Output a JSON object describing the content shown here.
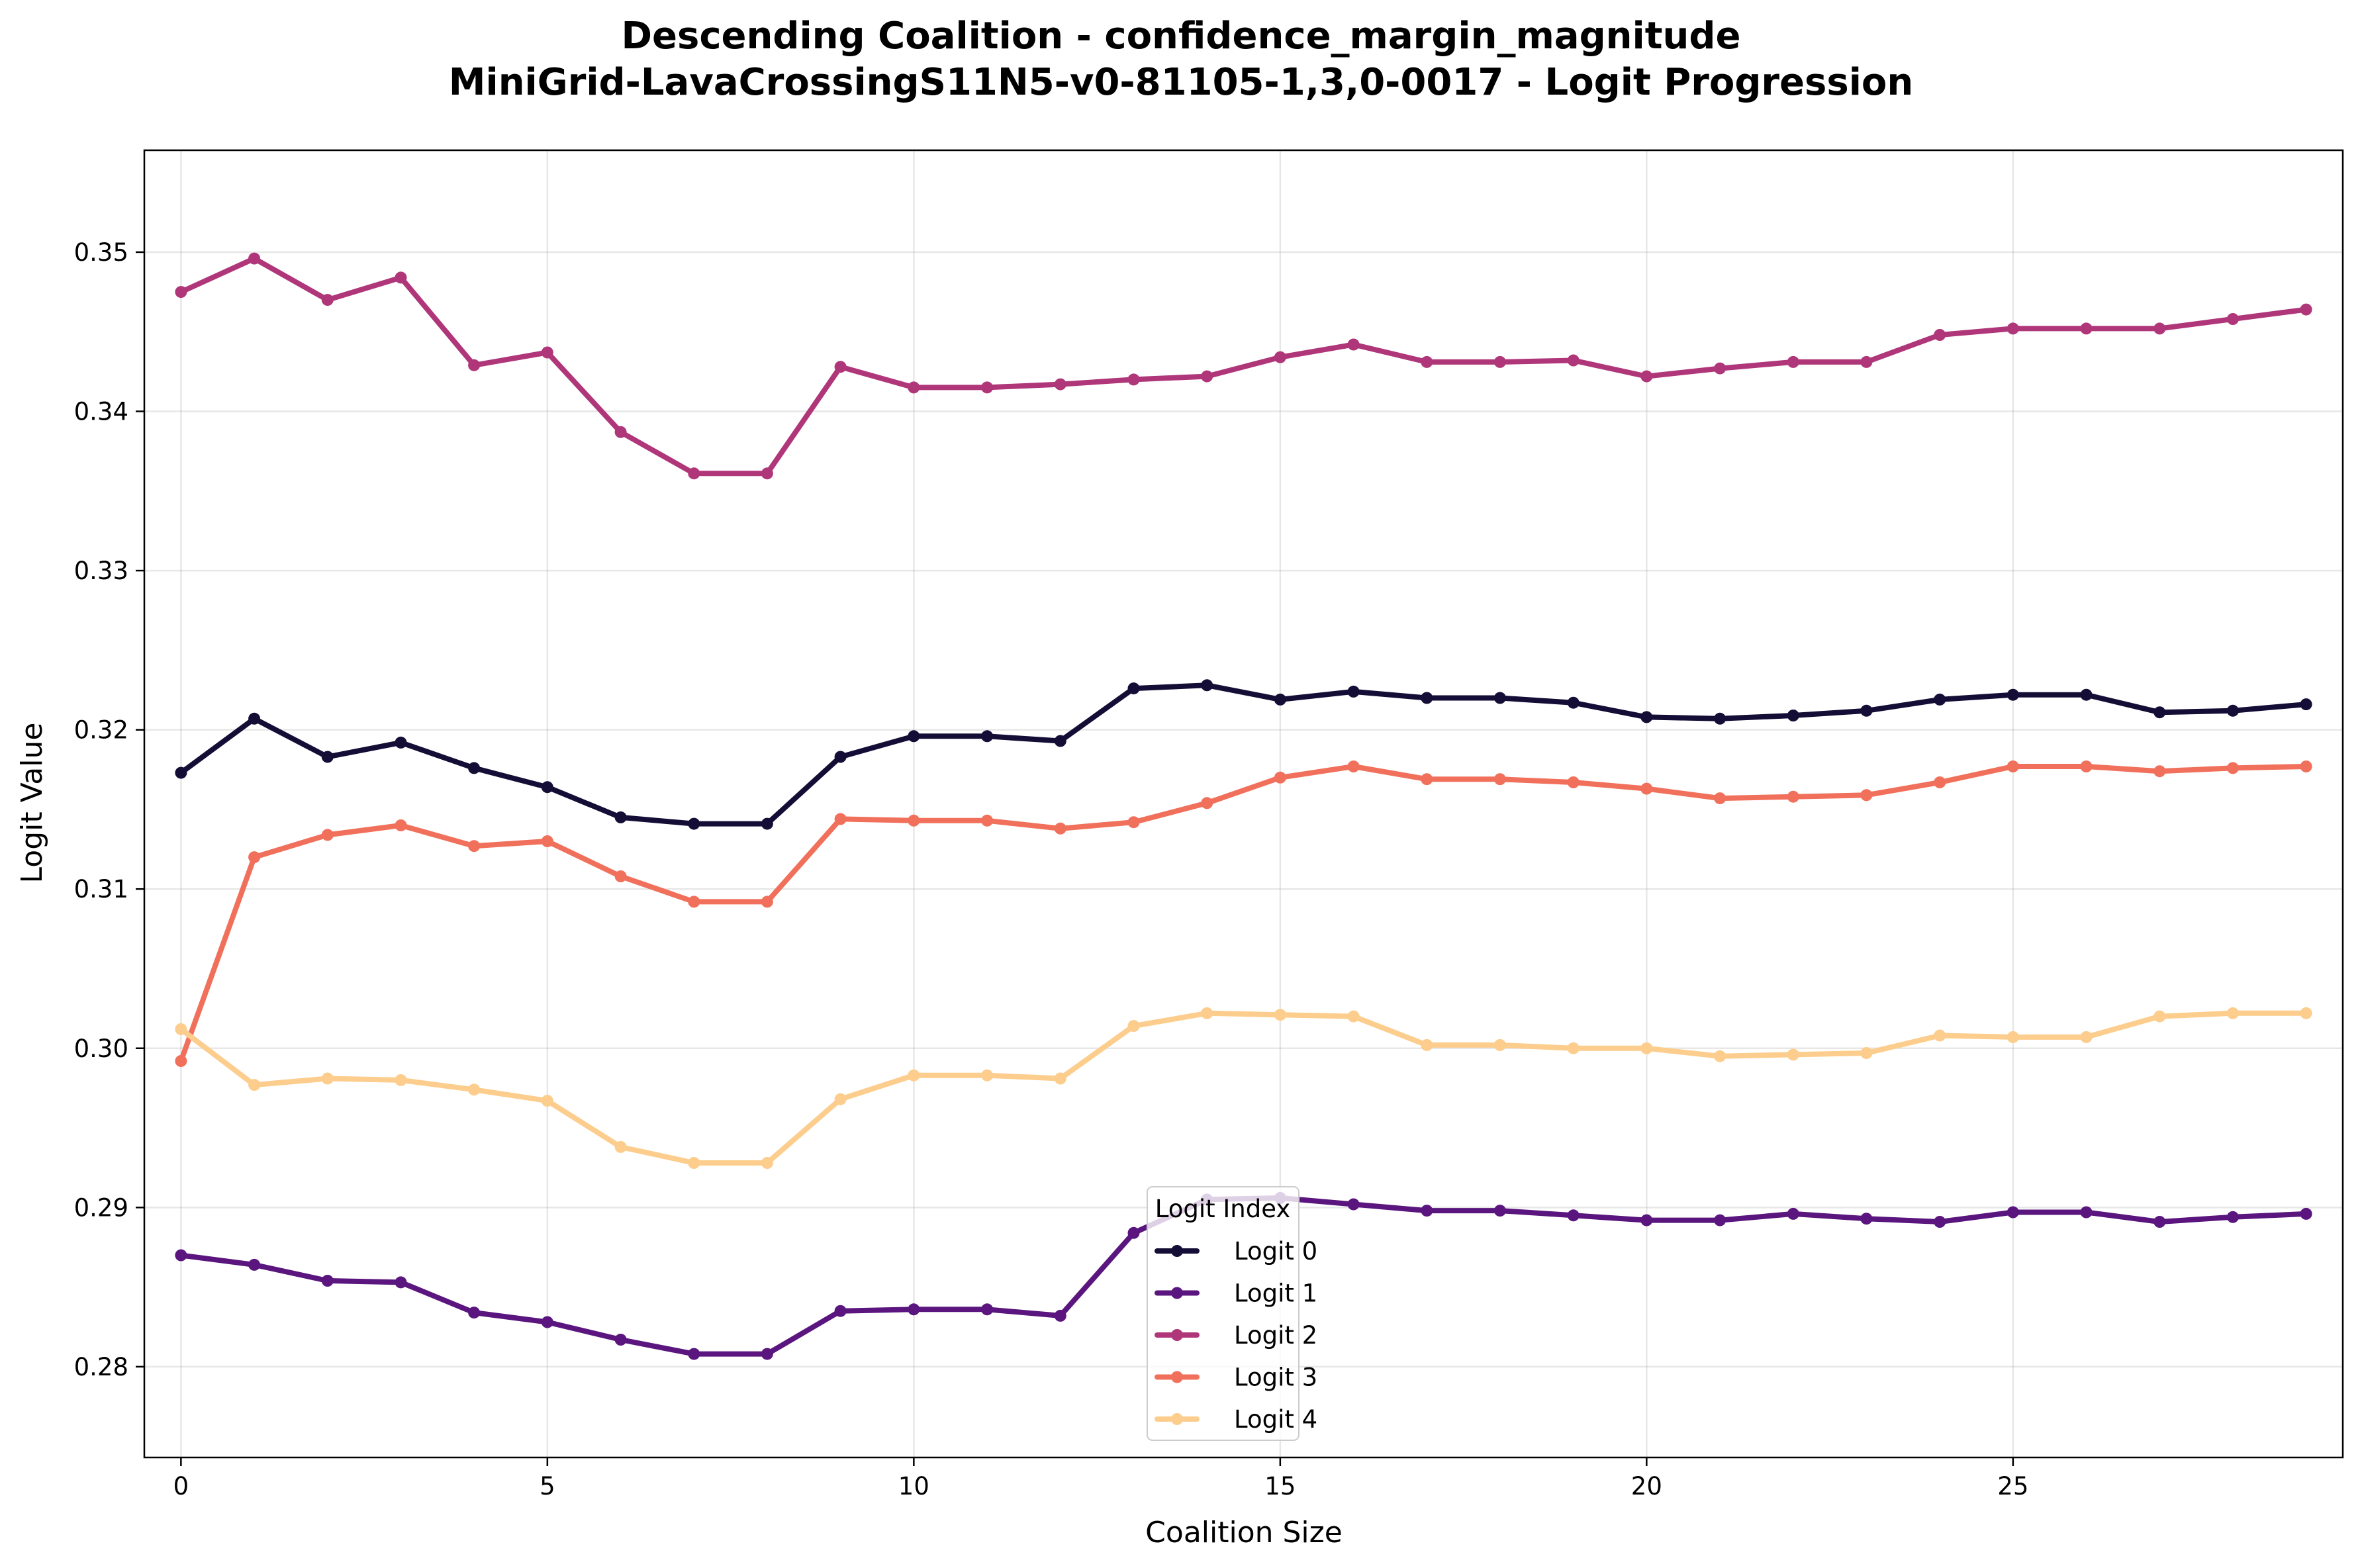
{
  "chart_data": {
    "type": "line",
    "title": "Descending Coalition - confidence_margin_magnitude\nMiniGrid-LavaCrossingS11N5-v0-81105-1,3,0-0017 - Logit Progression",
    "title_lines": [
      "Descending Coalition - confidence_margin_magnitude",
      "MiniGrid-LavaCrossingS11N5-v0-81105-1,3,0-0017 - Logit Progression"
    ],
    "xlabel": "Coalition Size",
    "ylabel": "Logit Value",
    "xlim": [
      -0.5,
      29.5
    ],
    "ylim": [
      0.2743,
      0.3564
    ],
    "xticks": [
      0,
      5,
      10,
      15,
      20,
      25
    ],
    "yticks": [
      0.28,
      0.29,
      0.3,
      0.31,
      0.32,
      0.33,
      0.34,
      0.35
    ],
    "ytick_labels": [
      "0.28",
      "0.29",
      "0.30",
      "0.31",
      "0.32",
      "0.33",
      "0.34",
      "0.35"
    ],
    "grid": true,
    "legend": {
      "title": "Logit Index",
      "placement": "lower-center"
    },
    "x": [
      0,
      1,
      2,
      3,
      4,
      5,
      6,
      7,
      8,
      9,
      10,
      11,
      12,
      13,
      14,
      15,
      16,
      17,
      18,
      19,
      20,
      21,
      22,
      23,
      24,
      25,
      26,
      27,
      28,
      29
    ],
    "series": [
      {
        "name": "Logit 0",
        "color": "#140e36",
        "values": [
          0.3173,
          0.3207,
          0.3183,
          0.3192,
          0.3176,
          0.3164,
          0.3145,
          0.3141,
          0.3141,
          0.3183,
          0.3196,
          0.3196,
          0.3193,
          0.3226,
          0.3228,
          0.3219,
          0.3224,
          0.322,
          0.322,
          0.3217,
          0.3208,
          0.3207,
          0.3209,
          0.3212,
          0.3219,
          0.3222,
          0.3222,
          0.3211,
          0.3212,
          0.3216
        ]
      },
      {
        "name": "Logit 1",
        "color": "#5a167e",
        "values": [
          0.287,
          0.2864,
          0.2854,
          0.2853,
          0.2834,
          0.2828,
          0.2817,
          0.2808,
          0.2808,
          0.2835,
          0.2836,
          0.2836,
          0.2832,
          0.2884,
          0.2905,
          0.2906,
          0.2902,
          0.2898,
          0.2898,
          0.2895,
          0.2892,
          0.2892,
          0.2896,
          0.2893,
          0.2891,
          0.2897,
          0.2897,
          0.2891,
          0.2894,
          0.2896
        ]
      },
      {
        "name": "Logit 2",
        "color": "#b0367a",
        "values": [
          0.3475,
          0.3496,
          0.347,
          0.3484,
          0.3429,
          0.3437,
          0.3387,
          0.3361,
          0.3361,
          0.3428,
          0.3415,
          0.3415,
          0.3417,
          0.342,
          0.3422,
          0.3434,
          0.3442,
          0.3431,
          0.3431,
          0.3432,
          0.3422,
          0.3427,
          0.3431,
          0.3431,
          0.3448,
          0.3452,
          0.3452,
          0.3452,
          0.3458,
          0.3464
        ]
      },
      {
        "name": "Logit 3",
        "color": "#f1705b",
        "values": [
          0.2992,
          0.312,
          0.3134,
          0.314,
          0.3127,
          0.313,
          0.3108,
          0.3092,
          0.3092,
          0.3144,
          0.3143,
          0.3143,
          0.3138,
          0.3142,
          0.3154,
          0.317,
          0.3177,
          0.3169,
          0.3169,
          0.3167,
          0.3163,
          0.3157,
          0.3158,
          0.3159,
          0.3167,
          0.3177,
          0.3177,
          0.3174,
          0.3176,
          0.3177
        ]
      },
      {
        "name": "Logit 4",
        "color": "#fccd8c",
        "values": [
          0.3012,
          0.2977,
          0.2981,
          0.298,
          0.2974,
          0.2967,
          0.2938,
          0.2928,
          0.2928,
          0.2968,
          0.2983,
          0.2983,
          0.2981,
          0.3014,
          0.3022,
          0.3021,
          0.302,
          0.3002,
          0.3002,
          0.3,
          0.3,
          0.2995,
          0.2996,
          0.2997,
          0.3008,
          0.3007,
          0.3007,
          0.302,
          0.3022,
          0.3022
        ]
      }
    ]
  }
}
